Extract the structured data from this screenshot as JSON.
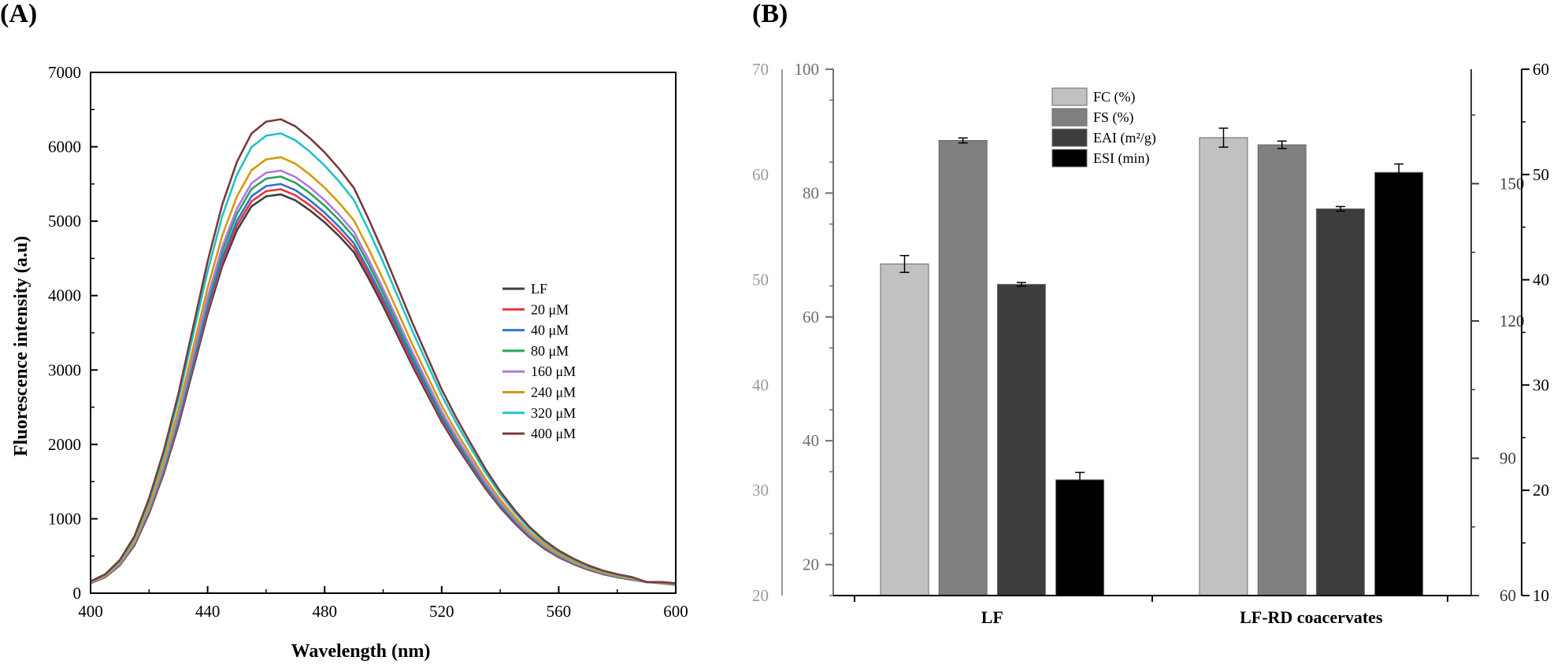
{
  "chart_data": [
    {
      "panel": "(A)",
      "type": "line",
      "xlabel": "Wavelength (nm)",
      "ylabel": "Fluorescence intensity (a.u)",
      "xlim": [
        400,
        600
      ],
      "ylim": [
        0,
        7000
      ],
      "xticks": [
        400,
        440,
        480,
        520,
        560,
        600
      ],
      "yticks": [
        0,
        1000,
        2000,
        3000,
        4000,
        5000,
        6000,
        7000
      ],
      "legend_position": "right",
      "x": [
        400,
        405,
        410,
        415,
        420,
        425,
        430,
        435,
        440,
        445,
        450,
        455,
        460,
        465,
        470,
        475,
        480,
        485,
        490,
        495,
        500,
        505,
        510,
        515,
        520,
        525,
        530,
        535,
        540,
        545,
        550,
        555,
        560,
        565,
        570,
        575,
        580,
        585,
        590,
        595,
        600
      ],
      "series": [
        {
          "name": "LF",
          "color": "#404040",
          "peak": 5360
        },
        {
          "name": "20 μM",
          "color": "#e8333b",
          "peak": 5430
        },
        {
          "name": "40 μM",
          "color": "#2b74d0",
          "peak": 5500
        },
        {
          "name": "80 μM",
          "color": "#26a357",
          "peak": 5600
        },
        {
          "name": "160 μM",
          "color": "#b476e6",
          "peak": 5680
        },
        {
          "name": "240 μM",
          "color": "#d49a0f",
          "peak": 5860
        },
        {
          "name": "320 μM",
          "color": "#22c2c8",
          "peak": 6180
        },
        {
          "name": "400 μM",
          "color": "#7a3b3b",
          "peak": 6370
        }
      ],
      "profile": [
        0.025,
        0.04,
        0.07,
        0.12,
        0.2,
        0.3,
        0.42,
        0.56,
        0.7,
        0.82,
        0.91,
        0.97,
        0.995,
        1.0,
        0.985,
        0.96,
        0.93,
        0.895,
        0.855,
        0.79,
        0.72,
        0.645,
        0.57,
        0.5,
        0.43,
        0.37,
        0.315,
        0.262,
        0.215,
        0.175,
        0.14,
        0.112,
        0.09,
        0.073,
        0.059,
        0.048,
        0.04,
        0.034,
        0.029,
        0.025,
        0.021
      ]
    },
    {
      "panel": "(B)",
      "type": "bar",
      "categories": [
        "LF",
        "LF-RD coacervates"
      ],
      "series": [
        {
          "name": "FC (%)",
          "color": "#c1c1c1",
          "axis": "left1",
          "values": [
            51.5,
            63.5
          ],
          "errors": [
            0.8,
            0.9
          ]
        },
        {
          "name": "FS (%)",
          "color": "#808080",
          "axis": "left2",
          "values": [
            88.5,
            87.8
          ],
          "errors": [
            0.4,
            0.6
          ]
        },
        {
          "name": "EAI (m²/g)",
          "color": "#3d3d3d",
          "axis": "right1",
          "values": [
            128,
            144.5
          ],
          "errors": [
            0.4,
            0.5
          ]
        },
        {
          "name": "ESI (min)",
          "color": "#000000",
          "axis": "right2",
          "values": [
            21,
            50.2
          ],
          "errors": [
            0.7,
            0.8
          ]
        }
      ],
      "axes": {
        "left1": {
          "min": 20,
          "max": 70,
          "ticks": [
            20,
            30,
            40,
            50,
            60,
            70
          ],
          "color": "#9a9a9a"
        },
        "left2": {
          "min": 15,
          "max": 100,
          "ticks": [
            20,
            40,
            60,
            80,
            100
          ],
          "color": "#6e6e6e"
        },
        "right1": {
          "min": 60,
          "max": 175,
          "ticks": [
            60,
            90,
            120,
            150
          ],
          "color": "#3a3a3a"
        },
        "right2": {
          "min": 10,
          "max": 60,
          "ticks": [
            10,
            20,
            30,
            40,
            50,
            60
          ],
          "color": "#000000"
        }
      },
      "legend_position": "top-left"
    }
  ]
}
